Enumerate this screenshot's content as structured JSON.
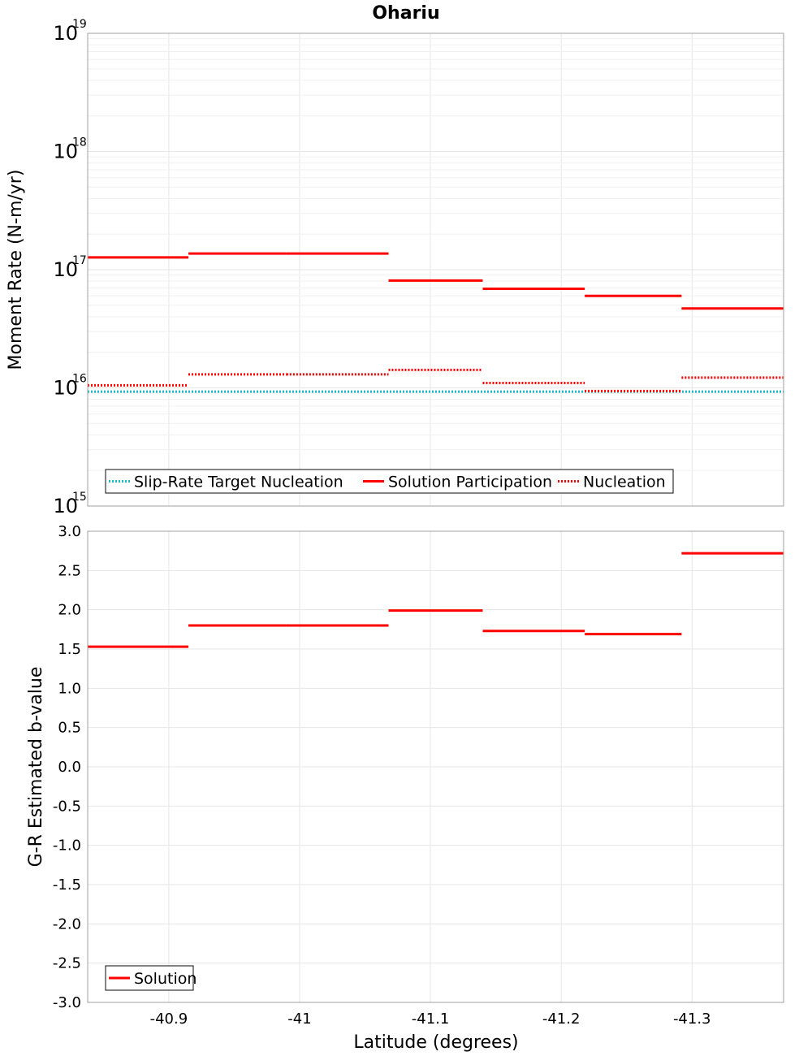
{
  "title": "Ohariu",
  "x_axis": {
    "label": "Latitude (degrees)",
    "range": [
      -40.838,
      -41.37
    ],
    "ticks": [
      -40.9,
      -41,
      -41.1,
      -41.2,
      -41.3
    ],
    "tick_labels": [
      "-40.9",
      "-41",
      "-41.1",
      "-41.2",
      "-41.3"
    ]
  },
  "chart_data": [
    {
      "type": "line",
      "title": "Ohariu",
      "xlabel": "Latitude (degrees)",
      "ylabel": "Moment Rate (N-m/yr)",
      "yscale": "log",
      "ylim": [
        1000000000000000.0,
        1e+19
      ],
      "ytick_exponents": [
        "15",
        "16",
        "17",
        "18",
        "19"
      ],
      "xlim": [
        -40.838,
        -41.37
      ],
      "grid": true,
      "legend_position": "bottom-left",
      "series": [
        {
          "name": "Slip-Rate Target Nucleation",
          "color": "#1fb8c4",
          "style": "dotted",
          "segments": [
            {
              "x": [
                -40.838,
                -41.37
              ],
              "y": 9300000000000000.0
            }
          ]
        },
        {
          "name": "Solution Participation",
          "color": "#ff0000",
          "style": "solid",
          "segments": [
            {
              "x": [
                -40.838,
                -40.915
              ],
              "y": 1.27e+17
            },
            {
              "x": [
                -40.915,
                -40.99
              ],
              "y": 1.37e+17
            },
            {
              "x": [
                -40.99,
                -41.068
              ],
              "y": 1.37e+17
            },
            {
              "x": [
                -41.068,
                -41.14
              ],
              "y": 8.1e+16
            },
            {
              "x": [
                -41.14,
                -41.218
              ],
              "y": 6.9e+16
            },
            {
              "x": [
                -41.218,
                -41.292
              ],
              "y": 6e+16
            },
            {
              "x": [
                -41.292,
                -41.37
              ],
              "y": 4.7e+16
            }
          ]
        },
        {
          "name": "Nucleation",
          "color": "#ff0000",
          "style": "dotted",
          "segments": [
            {
              "x": [
                -40.838,
                -40.915
              ],
              "y": 1.05e+16
            },
            {
              "x": [
                -40.915,
                -40.99
              ],
              "y": 1.3e+16
            },
            {
              "x": [
                -40.99,
                -41.068
              ],
              "y": 1.3e+16
            },
            {
              "x": [
                -41.068,
                -41.14
              ],
              "y": 1.42e+16
            },
            {
              "x": [
                -41.14,
                -41.218
              ],
              "y": 1.1e+16
            },
            {
              "x": [
                -41.218,
                -41.292
              ],
              "y": 9400000000000000.0
            },
            {
              "x": [
                -41.292,
                -41.37
              ],
              "y": 1.22e+16
            }
          ]
        }
      ]
    },
    {
      "type": "line",
      "xlabel": "Latitude (degrees)",
      "ylabel": "G-R Estimated b-value",
      "ylim": [
        -3.0,
        3.0
      ],
      "yticks": [
        "3.0",
        "2.5",
        "2.0",
        "1.5",
        "1.0",
        "0.5",
        "0.0",
        "-0.5",
        "-1.0",
        "-1.5",
        "-2.0",
        "-2.5",
        "-3.0"
      ],
      "xlim": [
        -40.838,
        -41.37
      ],
      "grid": true,
      "legend_position": "bottom-left",
      "series": [
        {
          "name": "Solution",
          "color": "#ff0000",
          "style": "solid",
          "segments": [
            {
              "x": [
                -40.838,
                -40.915
              ],
              "y": 1.53
            },
            {
              "x": [
                -40.915,
                -40.99
              ],
              "y": 1.8
            },
            {
              "x": [
                -40.99,
                -41.068
              ],
              "y": 1.8
            },
            {
              "x": [
                -41.068,
                -41.14
              ],
              "y": 1.99
            },
            {
              "x": [
                -41.14,
                -41.218
              ],
              "y": 1.73
            },
            {
              "x": [
                -41.218,
                -41.292
              ],
              "y": 1.69
            },
            {
              "x": [
                -41.292,
                -41.37
              ],
              "y": 2.72
            }
          ]
        }
      ]
    }
  ]
}
